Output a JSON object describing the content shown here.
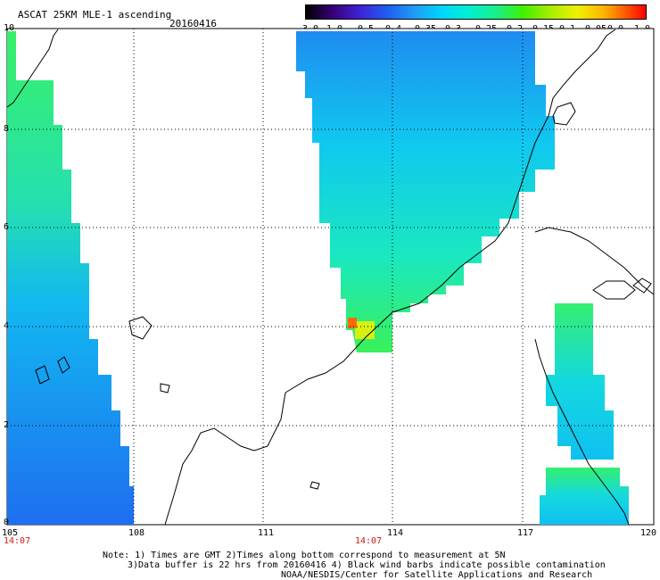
{
  "header": {
    "title": "ASCAT 25KM MLE-1 ascending",
    "date": "20160416"
  },
  "colorbar": {
    "labels": [
      "-3.0",
      "-1.0",
      "-0.5",
      "-0.4",
      "-0.35",
      "-0.3",
      "-0.25",
      "-0.2",
      "-0.15",
      "-0.1",
      "-0.05",
      "0.0",
      "1.0"
    ]
  },
  "map": {
    "lon_labels": [
      "105",
      "108",
      "111",
      "114",
      "117",
      "120"
    ],
    "lat_labels": [
      "0",
      "2",
      "4",
      "6",
      "8",
      "10"
    ],
    "time_labels": [
      "14:07",
      "14:07"
    ],
    "lon_range": [
      105,
      120
    ],
    "lat_range": [
      0,
      10
    ]
  },
  "footer": {
    "note_line_1": "Note: 1) Times are GMT 2)Times along bottom correspond to measurement at 5N",
    "note_line_2": "3)Data buffer is 22 hrs from 20160416 4) Black wind barbs indicate possible contamination",
    "note_line_3": "NOAA/NESDIS/Center for Satellite Applications and Research"
  },
  "colors": {
    "grid": "#000000",
    "time_label": "#d01818",
    "swath_blue": "#1f6ef0",
    "swath_cyan": "#00e0f0",
    "swath_green": "#34f070"
  }
}
